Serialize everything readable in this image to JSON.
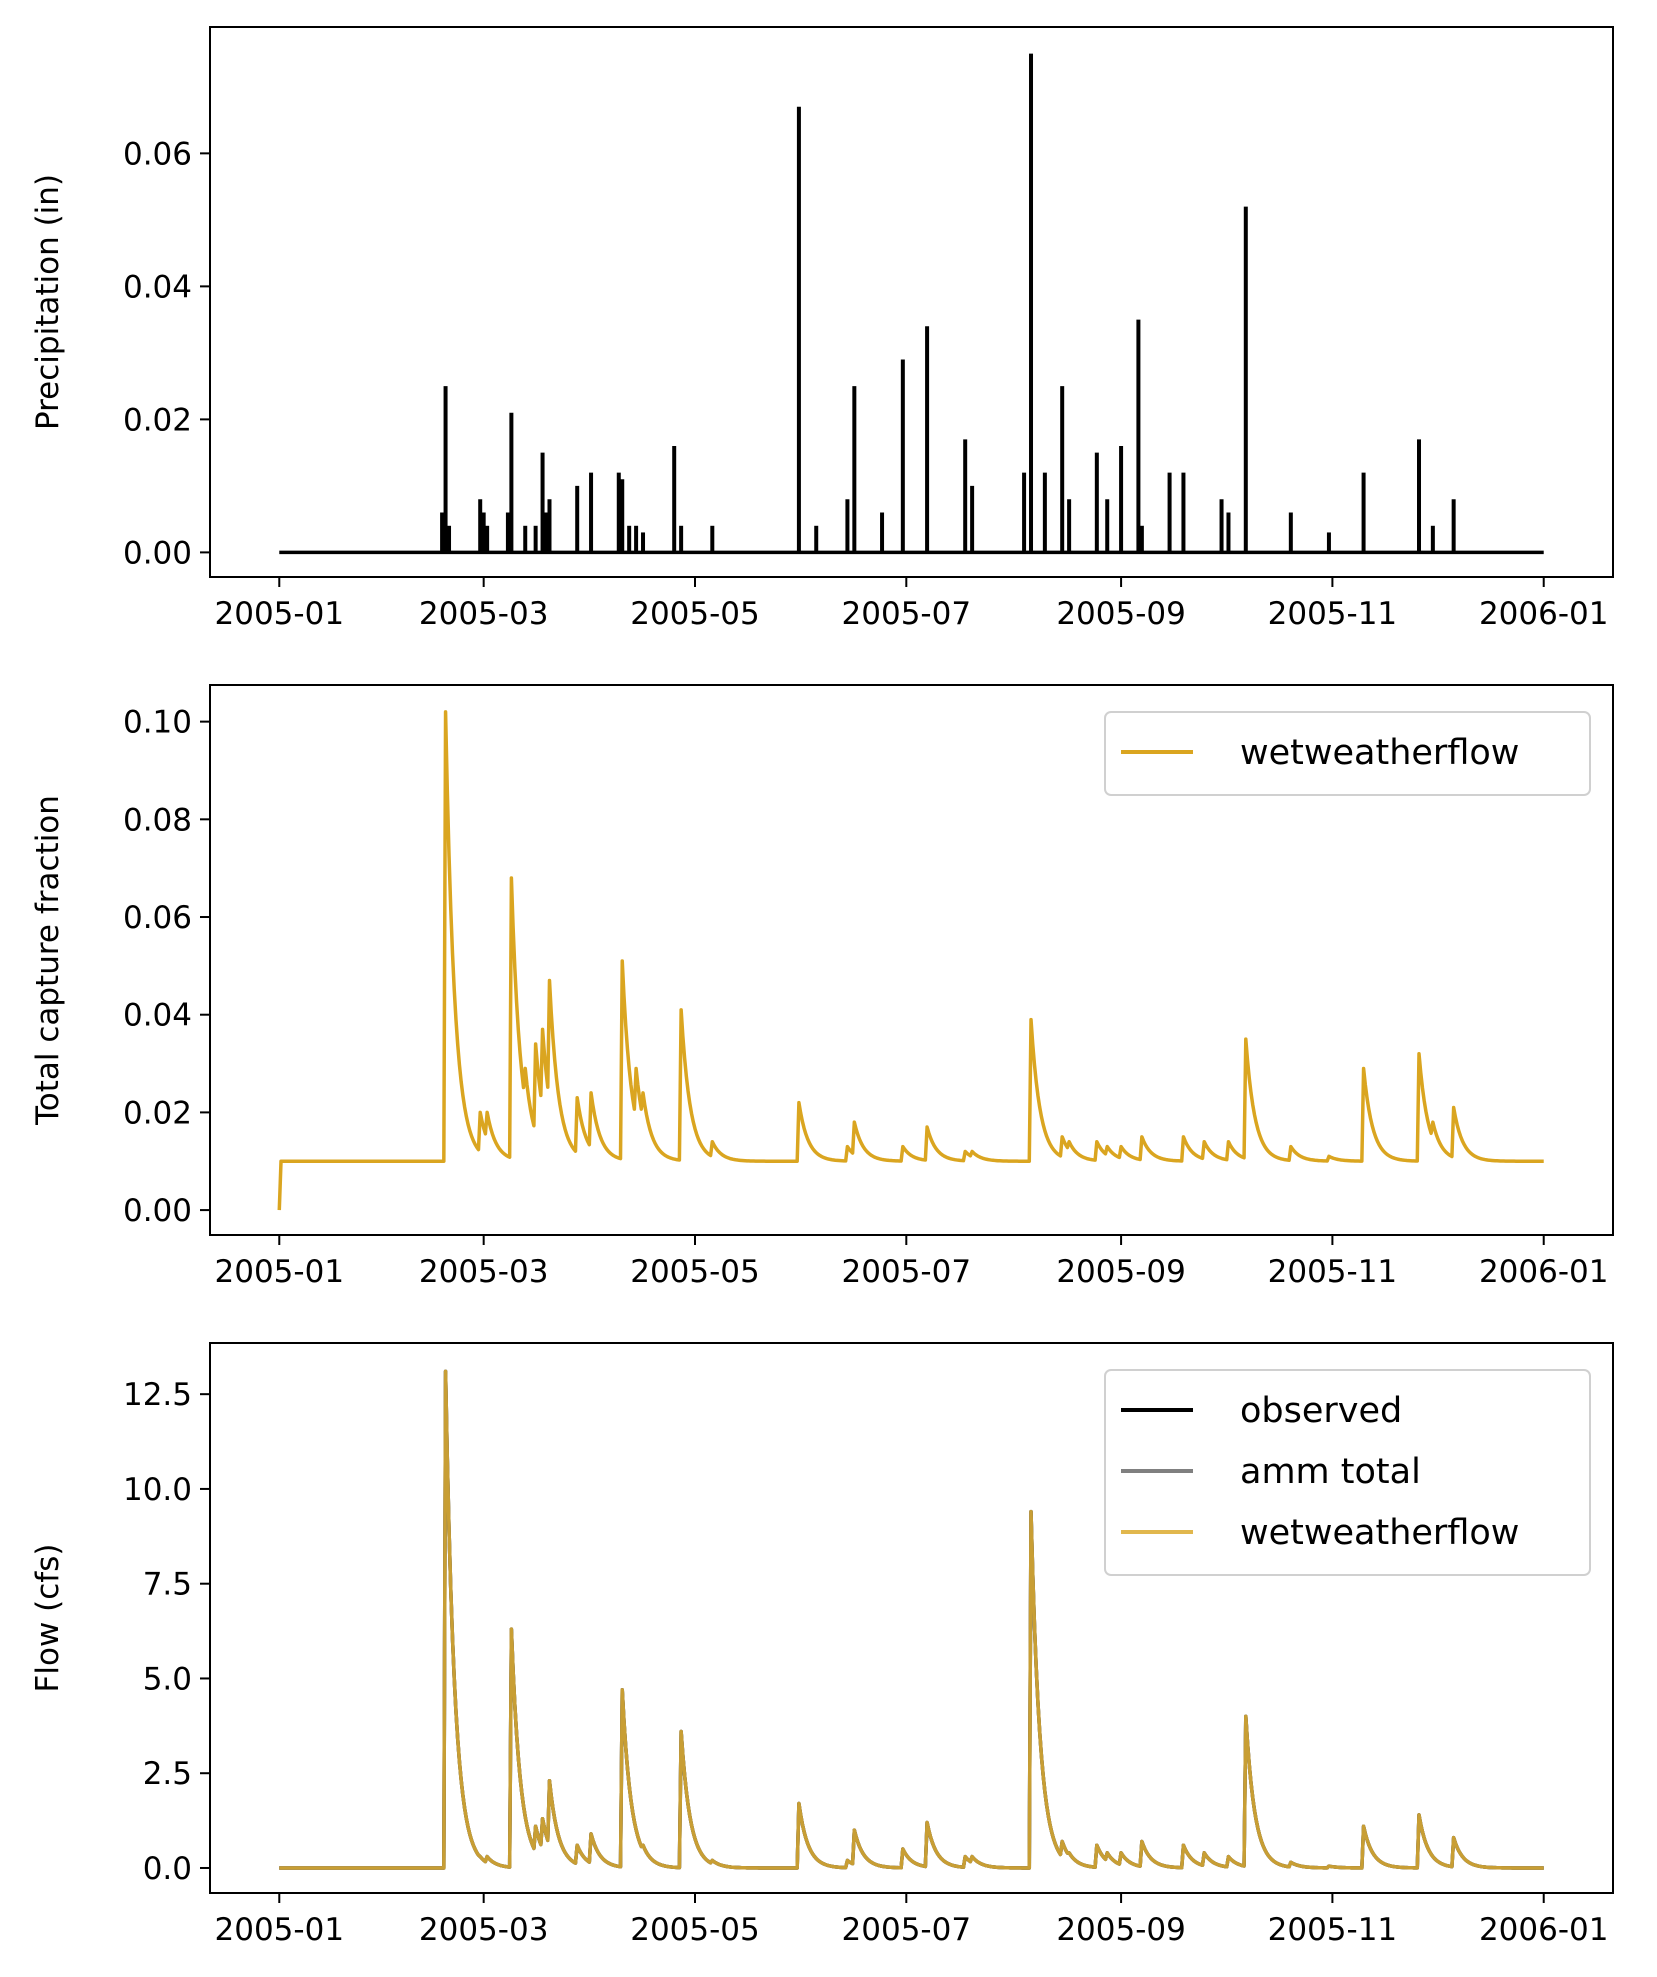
{
  "chart_data": [
    {
      "type": "bar",
      "ylabel": "Precipitation (in)",
      "xlim": [
        "2004-12-12",
        "2006-01-21"
      ],
      "ylim": [
        -0.0037,
        0.079
      ],
      "yticks": [
        0.0,
        0.02,
        0.04,
        0.06
      ],
      "ytick_labels": [
        "0.00",
        "0.02",
        "0.04",
        "0.06"
      ],
      "xticks": [
        "2005-01-01",
        "2005-03-01",
        "2005-05-01",
        "2005-07-01",
        "2005-09-01",
        "2005-11-01",
        "2006-01-01"
      ],
      "xtick_labels": [
        "2005-01",
        "2005-03",
        "2005-05",
        "2005-07",
        "2005-09",
        "2005-11",
        "2006-01"
      ],
      "legend": null,
      "grid": false,
      "series": [
        {
          "color": "#000000",
          "x": [
            "2005-02-17",
            "2005-02-18",
            "2005-02-19",
            "2005-02-28",
            "2005-03-01",
            "2005-03-02",
            "2005-03-08",
            "2005-03-09",
            "2005-03-13",
            "2005-03-16",
            "2005-03-18",
            "2005-03-19",
            "2005-03-20",
            "2005-03-28",
            "2005-04-01",
            "2005-04-09",
            "2005-04-10",
            "2005-04-12",
            "2005-04-14",
            "2005-04-16",
            "2005-04-25",
            "2005-04-27",
            "2005-05-06",
            "2005-05-31",
            "2005-06-05",
            "2005-06-14",
            "2005-06-16",
            "2005-06-24",
            "2005-06-30",
            "2005-07-07",
            "2005-07-18",
            "2005-07-20",
            "2005-08-04",
            "2005-08-06",
            "2005-08-10",
            "2005-08-15",
            "2005-08-17",
            "2005-08-25",
            "2005-08-28",
            "2005-09-01",
            "2005-09-06",
            "2005-09-07",
            "2005-09-15",
            "2005-09-19",
            "2005-09-30",
            "2005-10-02",
            "2005-10-07",
            "2005-10-20",
            "2005-10-31",
            "2005-11-10",
            "2005-11-26",
            "2005-11-30",
            "2005-12-06"
          ],
          "values": [
            0.006,
            0.025,
            0.004,
            0.008,
            0.006,
            0.004,
            0.006,
            0.021,
            0.004,
            0.004,
            0.015,
            0.006,
            0.008,
            0.01,
            0.012,
            0.012,
            0.011,
            0.004,
            0.004,
            0.003,
            0.016,
            0.004,
            0.004,
            0.067,
            0.004,
            0.008,
            0.025,
            0.006,
            0.029,
            0.034,
            0.017,
            0.01,
            0.012,
            0.075,
            0.012,
            0.025,
            0.008,
            0.015,
            0.008,
            0.016,
            0.035,
            0.004,
            0.012,
            0.012,
            0.008,
            0.006,
            0.052,
            0.006,
            0.003,
            0.012,
            0.017,
            0.004,
            0.008
          ]
        }
      ]
    },
    {
      "type": "line",
      "ylabel": "Total capture fraction",
      "xlim": [
        "2004-12-12",
        "2006-01-21"
      ],
      "ylim": [
        -0.0051,
        0.1075
      ],
      "yticks": [
        0.0,
        0.02,
        0.04,
        0.06,
        0.08,
        0.1
      ],
      "ytick_labels": [
        "0.00",
        "0.02",
        "0.04",
        "0.06",
        "0.08",
        "0.10"
      ],
      "xticks": [
        "2005-01-01",
        "2005-03-01",
        "2005-05-01",
        "2005-07-01",
        "2005-09-01",
        "2005-11-01",
        "2006-01-01"
      ],
      "xtick_labels": [
        "2005-01",
        "2005-03",
        "2005-05",
        "2005-07",
        "2005-09",
        "2005-11",
        "2006-01"
      ],
      "legend": {
        "position": "top-right",
        "entries": [
          "wetweatherflow"
        ]
      },
      "grid": false,
      "series": [
        {
          "name": "wetweatherflow",
          "color": "#DAA520",
          "alpha": 1.0,
          "baseline": 0.01,
          "first_value": 0.0,
          "events": [
            {
              "date": "2005-02-18",
              "value": 0.102
            },
            {
              "date": "2005-02-28",
              "value": 0.02
            },
            {
              "date": "2005-03-02",
              "value": 0.02
            },
            {
              "date": "2005-03-09",
              "value": 0.068
            },
            {
              "date": "2005-03-13",
              "value": 0.029
            },
            {
              "date": "2005-03-16",
              "value": 0.034
            },
            {
              "date": "2005-03-18",
              "value": 0.037
            },
            {
              "date": "2005-03-20",
              "value": 0.047
            },
            {
              "date": "2005-03-28",
              "value": 0.023
            },
            {
              "date": "2005-04-01",
              "value": 0.024
            },
            {
              "date": "2005-04-10",
              "value": 0.051
            },
            {
              "date": "2005-04-14",
              "value": 0.029
            },
            {
              "date": "2005-04-16",
              "value": 0.024
            },
            {
              "date": "2005-04-27",
              "value": 0.041
            },
            {
              "date": "2005-05-06",
              "value": 0.014
            },
            {
              "date": "2005-05-31",
              "value": 0.022
            },
            {
              "date": "2005-06-14",
              "value": 0.013
            },
            {
              "date": "2005-06-16",
              "value": 0.018
            },
            {
              "date": "2005-06-30",
              "value": 0.013
            },
            {
              "date": "2005-07-07",
              "value": 0.017
            },
            {
              "date": "2005-07-18",
              "value": 0.012
            },
            {
              "date": "2005-07-20",
              "value": 0.012
            },
            {
              "date": "2005-08-06",
              "value": 0.039
            },
            {
              "date": "2005-08-15",
              "value": 0.015
            },
            {
              "date": "2005-08-17",
              "value": 0.014
            },
            {
              "date": "2005-08-25",
              "value": 0.014
            },
            {
              "date": "2005-08-28",
              "value": 0.013
            },
            {
              "date": "2005-09-01",
              "value": 0.013
            },
            {
              "date": "2005-09-07",
              "value": 0.015
            },
            {
              "date": "2005-09-19",
              "value": 0.015
            },
            {
              "date": "2005-09-25",
              "value": 0.014
            },
            {
              "date": "2005-10-02",
              "value": 0.014
            },
            {
              "date": "2005-10-07",
              "value": 0.035
            },
            {
              "date": "2005-10-20",
              "value": 0.013
            },
            {
              "date": "2005-10-31",
              "value": 0.011
            },
            {
              "date": "2005-11-10",
              "value": 0.029
            },
            {
              "date": "2005-11-26",
              "value": 0.032
            },
            {
              "date": "2005-11-30",
              "value": 0.018
            },
            {
              "date": "2005-12-06",
              "value": 0.021
            }
          ]
        }
      ]
    },
    {
      "type": "line",
      "ylabel": "Flow (cfs)",
      "xlim": [
        "2004-12-12",
        "2006-01-21"
      ],
      "ylim": [
        -0.66,
        13.85
      ],
      "yticks": [
        0.0,
        2.5,
        5.0,
        7.5,
        10.0,
        12.5
      ],
      "ytick_labels": [
        "0.0",
        "2.5",
        "5.0",
        "7.5",
        "10.0",
        "12.5"
      ],
      "xticks": [
        "2005-01-01",
        "2005-03-01",
        "2005-05-01",
        "2005-07-01",
        "2005-09-01",
        "2005-11-01",
        "2006-01-01"
      ],
      "xtick_labels": [
        "2005-01",
        "2005-03",
        "2005-05",
        "2005-07",
        "2005-09",
        "2005-11",
        "2006-01"
      ],
      "legend": {
        "position": "top-right",
        "entries": [
          "observed",
          "amm total",
          "wetweatherflow"
        ]
      },
      "grid": false,
      "events": [
        {
          "date": "2005-02-18",
          "value": 13.1
        },
        {
          "date": "2005-02-28",
          "value": 0.3
        },
        {
          "date": "2005-03-02",
          "value": 0.3
        },
        {
          "date": "2005-03-09",
          "value": 6.3
        },
        {
          "date": "2005-03-13",
          "value": 0.9
        },
        {
          "date": "2005-03-16",
          "value": 1.1
        },
        {
          "date": "2005-03-18",
          "value": 1.3
        },
        {
          "date": "2005-03-20",
          "value": 2.3
        },
        {
          "date": "2005-03-28",
          "value": 0.6
        },
        {
          "date": "2005-04-01",
          "value": 0.9
        },
        {
          "date": "2005-04-10",
          "value": 4.7
        },
        {
          "date": "2005-04-14",
          "value": 1.0
        },
        {
          "date": "2005-04-16",
          "value": 0.6
        },
        {
          "date": "2005-04-27",
          "value": 3.6
        },
        {
          "date": "2005-05-06",
          "value": 0.2
        },
        {
          "date": "2005-05-31",
          "value": 1.7
        },
        {
          "date": "2005-06-14",
          "value": 0.2
        },
        {
          "date": "2005-06-16",
          "value": 1.0
        },
        {
          "date": "2005-06-30",
          "value": 0.5
        },
        {
          "date": "2005-07-07",
          "value": 1.2
        },
        {
          "date": "2005-07-18",
          "value": 0.3
        },
        {
          "date": "2005-07-20",
          "value": 0.3
        },
        {
          "date": "2005-08-06",
          "value": 9.4
        },
        {
          "date": "2005-08-15",
          "value": 0.7
        },
        {
          "date": "2005-08-17",
          "value": 0.4
        },
        {
          "date": "2005-08-25",
          "value": 0.6
        },
        {
          "date": "2005-08-28",
          "value": 0.4
        },
        {
          "date": "2005-09-01",
          "value": 0.4
        },
        {
          "date": "2005-09-07",
          "value": 0.7
        },
        {
          "date": "2005-09-19",
          "value": 0.6
        },
        {
          "date": "2005-09-25",
          "value": 0.4
        },
        {
          "date": "2005-10-02",
          "value": 0.3
        },
        {
          "date": "2005-10-07",
          "value": 4.0
        },
        {
          "date": "2005-10-20",
          "value": 0.15
        },
        {
          "date": "2005-10-31",
          "value": 0.05
        },
        {
          "date": "2005-11-10",
          "value": 1.1
        },
        {
          "date": "2005-11-26",
          "value": 1.4
        },
        {
          "date": "2005-11-30",
          "value": 0.2
        },
        {
          "date": "2005-12-06",
          "value": 0.8
        }
      ],
      "series": [
        {
          "name": "observed",
          "color": "#000000",
          "alpha": 1.0
        },
        {
          "name": "amm total",
          "color": "#808080",
          "alpha": 1.0
        },
        {
          "name": "wetweatherflow",
          "color": "#DAA520",
          "alpha": 0.8
        }
      ]
    }
  ]
}
